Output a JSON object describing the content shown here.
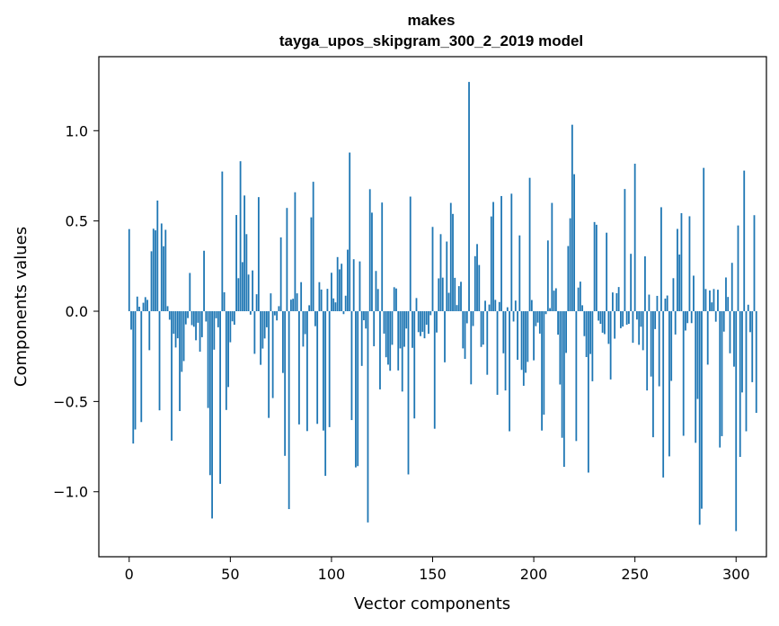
{
  "chart_data": {
    "type": "bar",
    "title": "makes",
    "subtitle": "tayga_upos_skipgram_300_2_2019 model",
    "xlabel": "Vector components",
    "ylabel": "Components values",
    "xlim": [
      -15,
      315
    ],
    "ylim": [
      -1.36,
      1.41
    ],
    "x_ticks": [
      0,
      50,
      100,
      150,
      200,
      250,
      300
    ],
    "x_tick_labels": [
      "0",
      "50",
      "100",
      "150",
      "200",
      "250",
      "300"
    ],
    "y_ticks": [
      -1.0,
      -0.5,
      0.0,
      0.5,
      1.0
    ],
    "y_tick_labels": [
      "−1.0",
      "−0.5",
      "0.0",
      "0.5",
      "1.0"
    ],
    "bar_color": "#1f77b4",
    "values": [
      0.455,
      -0.102,
      -0.733,
      -0.655,
      0.081,
      0.025,
      -0.614,
      0.047,
      0.078,
      0.063,
      -0.216,
      0.332,
      0.457,
      0.448,
      0.613,
      -0.549,
      0.486,
      0.36,
      0.451,
      0.028,
      -0.047,
      -0.717,
      -0.125,
      -0.201,
      -0.15,
      -0.553,
      -0.336,
      -0.276,
      -0.073,
      -0.038,
      0.212,
      -0.077,
      -0.086,
      -0.161,
      -0.064,
      -0.224,
      -0.144,
      0.335,
      -0.057,
      -0.536,
      -0.908,
      -1.148,
      -0.213,
      -0.039,
      -0.089,
      -0.956,
      0.774,
      0.105,
      -0.547,
      -0.42,
      -0.172,
      -0.056,
      -0.075,
      0.533,
      0.183,
      0.831,
      0.272,
      0.641,
      0.427,
      0.203,
      -0.019,
      0.226,
      -0.236,
      0.094,
      0.632,
      -0.297,
      -0.207,
      -0.151,
      -0.089,
      -0.591,
      0.099,
      -0.481,
      -0.023,
      -0.051,
      0.028,
      0.409,
      -0.342,
      -0.801,
      0.572,
      -1.096,
      0.064,
      0.069,
      0.659,
      0.099,
      -0.627,
      0.161,
      -0.196,
      -0.127,
      -0.664,
      0.033,
      0.52,
      0.717,
      -0.083,
      -0.624,
      0.161,
      0.12,
      -0.661,
      -0.912,
      0.124,
      -0.642,
      0.213,
      0.071,
      0.049,
      0.3,
      0.232,
      0.263,
      -0.016,
      0.086,
      0.341,
      0.879,
      -0.603,
      0.288,
      -0.865,
      -0.858,
      0.276,
      -0.303,
      -0.05,
      -0.096,
      -1.17,
      0.676,
      0.546,
      -0.194,
      0.223,
      0.123,
      -0.433,
      0.602,
      -0.124,
      -0.255,
      -0.296,
      -0.33,
      -0.186,
      0.133,
      0.126,
      -0.328,
      -0.206,
      -0.445,
      -0.197,
      -0.096,
      -0.904,
      0.635,
      -0.203,
      -0.594,
      0.073,
      -0.116,
      -0.138,
      -0.114,
      -0.15,
      -0.075,
      -0.125,
      -0.022,
      0.467,
      -0.651,
      -0.118,
      0.182,
      0.427,
      0.186,
      -0.283,
      0.386,
      0.102,
      0.6,
      0.539,
      0.185,
      0.034,
      0.139,
      0.163,
      -0.206,
      -0.264,
      -0.067,
      1.27,
      -0.405,
      -0.082,
      0.305,
      0.372,
      0.256,
      -0.198,
      -0.185,
      0.058,
      -0.352,
      0.037,
      0.525,
      0.605,
      0.063,
      -0.463,
      0.051,
      0.638,
      -0.233,
      -0.439,
      0.022,
      -0.665,
      0.651,
      -0.057,
      0.059,
      -0.269,
      0.42,
      -0.325,
      -0.413,
      -0.341,
      -0.281,
      0.739,
      0.062,
      -0.272,
      -0.083,
      -0.063,
      -0.124,
      -0.661,
      -0.573,
      -0.016,
      0.392,
      0.017,
      0.6,
      0.114,
      0.127,
      -0.13,
      -0.406,
      -0.701,
      -0.862,
      -0.231,
      0.361,
      0.515,
      1.033,
      0.759,
      -0.719,
      0.131,
      0.164,
      0.033,
      -0.138,
      -0.254,
      -0.894,
      -0.237,
      -0.388,
      0.494,
      0.479,
      -0.052,
      -0.07,
      -0.119,
      -0.127,
      0.435,
      -0.181,
      -0.378,
      0.104,
      -0.152,
      0.1,
      0.134,
      -0.094,
      -0.085,
      0.677,
      -0.075,
      -0.07,
      0.318,
      -0.175,
      0.817,
      -0.046,
      -0.186,
      -0.086,
      -0.216,
      0.304,
      -0.439,
      0.092,
      -0.362,
      -0.698,
      -0.099,
      0.085,
      -0.416,
      0.576,
      -0.921,
      0.07,
      0.087,
      -0.804,
      -0.386,
      0.183,
      -0.129,
      0.456,
      0.314,
      0.543,
      -0.69,
      -0.107,
      -0.066,
      0.526,
      -0.066,
      0.197,
      -0.729,
      -0.486,
      -1.183,
      -1.094,
      0.794,
      0.123,
      -0.296,
      0.115,
      0.049,
      0.123,
      -0.058,
      0.119,
      -0.755,
      -0.692,
      -0.113,
      0.187,
      0.079,
      -0.233,
      0.268,
      -0.307,
      -1.218,
      0.475,
      -0.807,
      -0.45,
      0.779,
      -0.665,
      0.036,
      -0.116,
      -0.393,
      0.532,
      -0.563
    ]
  }
}
